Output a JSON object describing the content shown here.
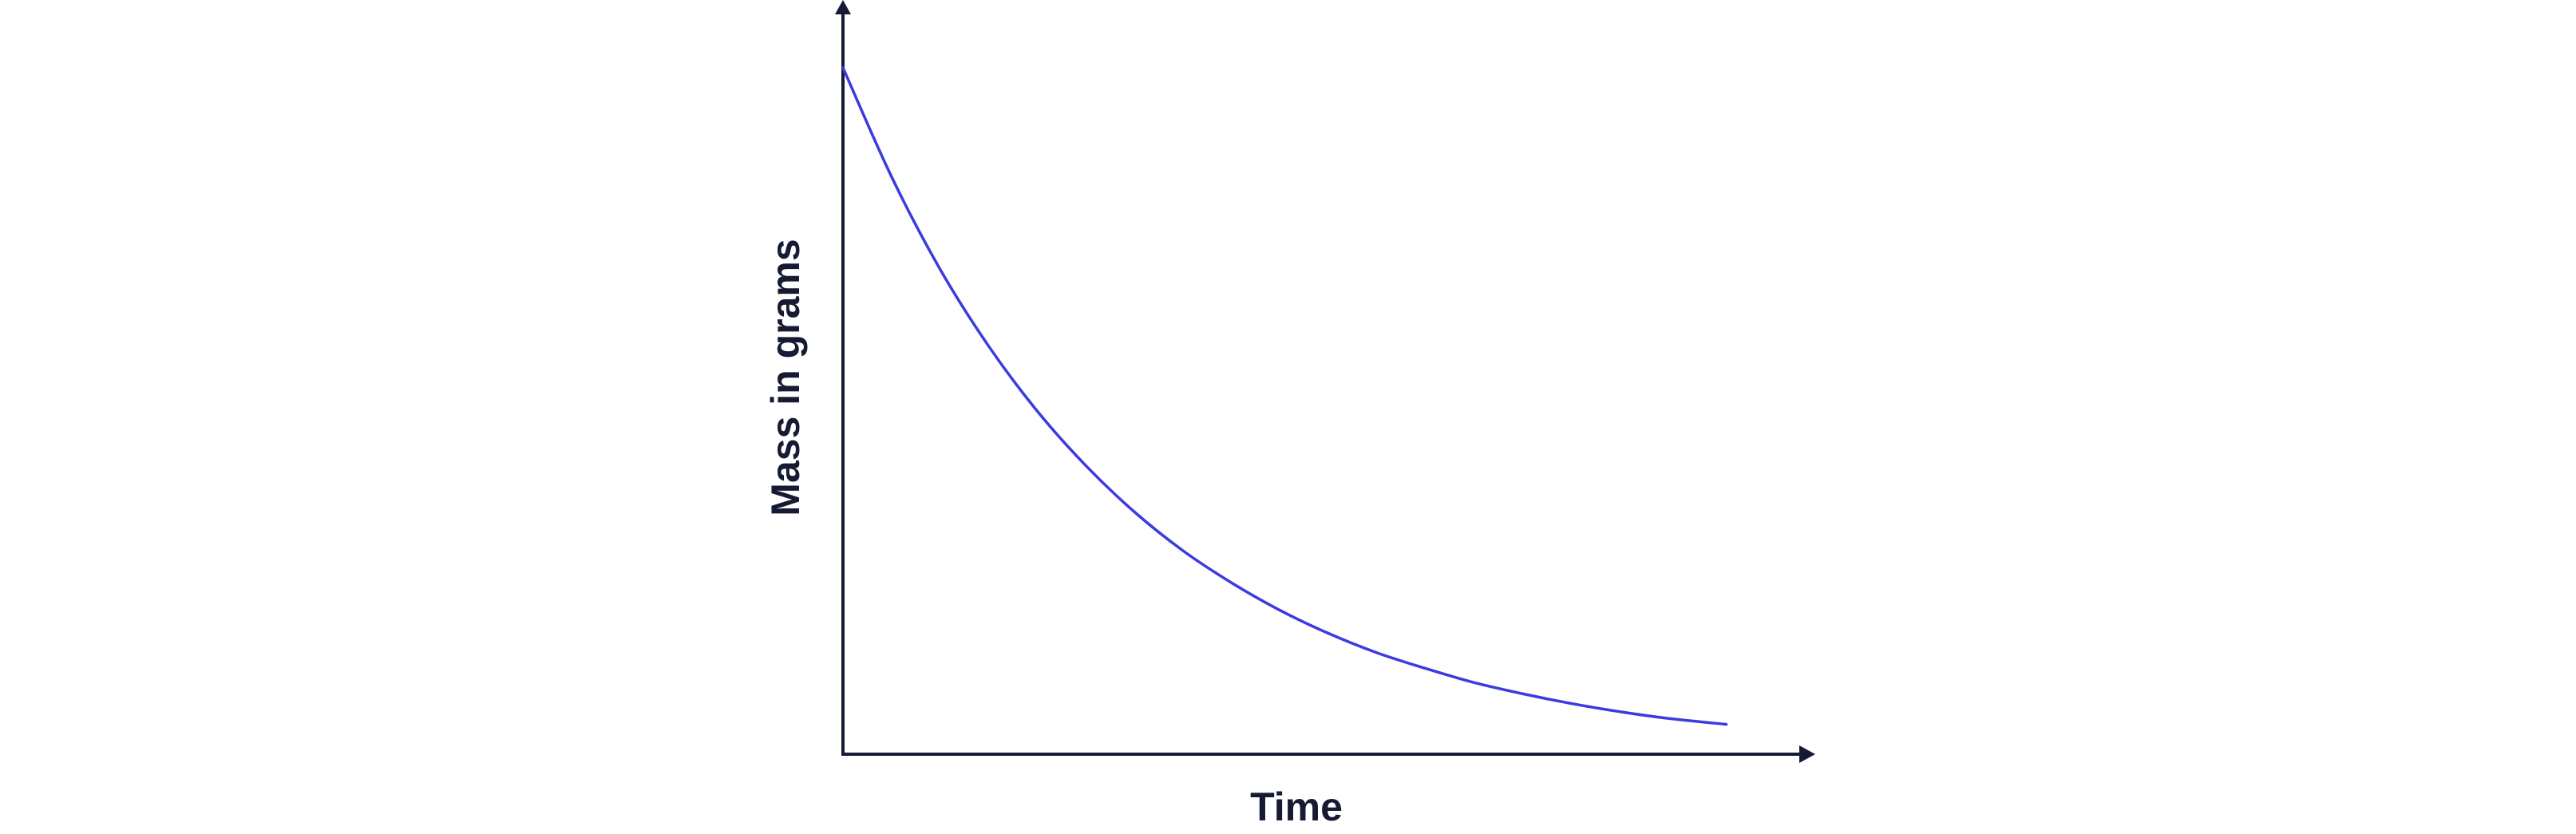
{
  "chart_data": {
    "type": "line",
    "x_label": "Time",
    "y_label": "Mass in grams",
    "x": [
      0,
      5,
      10,
      15,
      20,
      25,
      30,
      35,
      40,
      45,
      50,
      55,
      60,
      65,
      70,
      75,
      80,
      85,
      91
    ],
    "values": [
      92,
      77.4,
      65,
      54.7,
      46,
      38.7,
      32.5,
      27.3,
      23,
      19.3,
      16.2,
      13.6,
      11.5,
      9.6,
      8.1,
      6.8,
      5.7,
      4.8,
      4
    ],
    "color": "#3b3be0",
    "xlim": [
      0,
      100
    ],
    "ylim": [
      0,
      100
    ]
  }
}
